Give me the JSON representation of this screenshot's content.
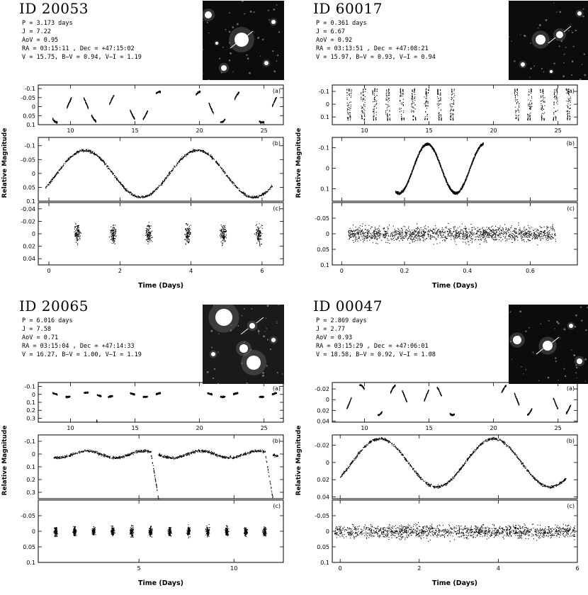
{
  "chart_data": [
    {
      "type": "scatter",
      "id": "ID 20053",
      "info": [
        "P = 3.173 days",
        "J = 7.22",
        "AoV = 0.95",
        "RA = 03:15:11 , Dec = +47:15:02",
        "V = 15.75, B−V = 0.94, V−I = 1.19"
      ],
      "ylabel": "Relative Magnitude",
      "xlabel": "Time (Days)",
      "panels": [
        {
          "tag": "(a)",
          "xlim": [
            7.5,
            26.5
          ],
          "ylim": [
            0.1,
            -0.12
          ],
          "xticks": [
            10,
            15,
            20,
            25
          ],
          "yticks": [
            -0.1,
            -0.05,
            0,
            0.05,
            0.1
          ],
          "yticklabels": [
            "-0.1",
            "-0.05",
            "0",
            "0.05",
            "0.1"
          ]
        },
        {
          "tag": "(b)",
          "xlim": [
            -0.3,
            6.6
          ],
          "ylim": [
            0.1,
            -0.13
          ],
          "yticks": [
            -0.1,
            -0.05,
            0,
            0.05,
            0.1
          ],
          "yticklabels": [
            "-0.1",
            "-0.05",
            "0",
            "0.05",
            "0.1"
          ]
        },
        {
          "tag": "(c)",
          "xlim": [
            -0.3,
            6.6
          ],
          "ylim": [
            0.05,
            -0.05
          ],
          "xticks": [
            0,
            2,
            4,
            6
          ],
          "yticks": [
            -0.04,
            -0.02,
            0,
            0.02,
            0.04
          ],
          "yticklabels": [
            "-0.04",
            "-0.02",
            "0",
            "0.02",
            "0.04"
          ]
        }
      ],
      "period": 3.173,
      "amplitude": 0.085,
      "nights": [
        8.6,
        9.7,
        11.0,
        11.6,
        13.0,
        14.6,
        15.6,
        16.6,
        19.7,
        20.7,
        21.6,
        22.7,
        24.6,
        25.6
      ],
      "nights_c": [
        0.8,
        1.8,
        2.8,
        3.9,
        4.9,
        5.9
      ]
    },
    {
      "type": "scatter",
      "id": "ID 60017",
      "info": [
        "P = 0.361 days",
        "J = 6.67",
        "AoV = 0.92",
        "RA = 03:13:51 , Dec = +47:08:21",
        "V = 15.97, B−V = 0.93, V−I = 0.94"
      ],
      "ylabel": "Relative Magnitude",
      "xlabel": "Time (Days)",
      "panels": [
        {
          "tag": "(a)",
          "xlim": [
            7.5,
            26.5
          ],
          "ylim": [
            0.16,
            -0.15
          ],
          "xticks": [
            10,
            15,
            20,
            25
          ],
          "yticks": [
            -0.1,
            0,
            0.1
          ],
          "yticklabels": [
            "-0.1",
            "0",
            "0.1"
          ]
        },
        {
          "tag": "(b)",
          "xlim": [
            -0.03,
            0.75
          ],
          "ylim": [
            0.16,
            -0.15
          ],
          "yticks": [
            -0.1,
            0,
            0.1
          ],
          "yticklabels": [
            "-0.1",
            "0",
            "0.1"
          ]
        },
        {
          "tag": "(c)",
          "xlim": [
            -0.03,
            0.75
          ],
          "ylim": [
            0.1,
            -0.1
          ],
          "xticks": [
            0,
            0.2,
            0.4,
            0.6
          ],
          "yticks": [
            -0.05,
            0,
            0.05,
            0.1
          ],
          "yticklabels": [
            "-0.05",
            "0",
            "0.05",
            "0.1"
          ]
        }
      ],
      "period": 0.181,
      "amplitude": 0.12,
      "nights": [
        8.6,
        9.7,
        10.6,
        11.6,
        12.7,
        13.6,
        14.6,
        15.6,
        16.6,
        21.6,
        22.6,
        23.6,
        24.6,
        25.6
      ]
    },
    {
      "type": "scatter",
      "id": "ID 20065",
      "info": [
        "P = 6.016 days",
        "J = 7.58",
        "AoV = 0.71",
        "RA = 03:15:04 , Dec = +47:14:33",
        "V = 16.27, B−V = 1.00, V−I = 1.19"
      ],
      "ylabel": "Relative Magnitude",
      "xlabel": "Time (Days)",
      "panels": [
        {
          "tag": "(a)",
          "xlim": [
            7.5,
            26.5
          ],
          "ylim": [
            0.35,
            -0.15
          ],
          "xticks": [
            10,
            15,
            20,
            25
          ],
          "yticks": [
            -0.1,
            0,
            0.1,
            0.2,
            0.3
          ],
          "yticklabels": [
            "-0.1",
            "0",
            "0.1",
            "0.2",
            "0.3"
          ]
        },
        {
          "tag": "(b)",
          "xlim": [
            -0.3,
            12.6
          ],
          "ylim": [
            0.35,
            -0.15
          ],
          "yticks": [
            -0.1,
            0,
            0.1,
            0.2,
            0.3
          ],
          "yticklabels": [
            "-0.1",
            "0",
            "0.1",
            "0.2",
            "0.3"
          ]
        },
        {
          "tag": "(c)",
          "xlim": [
            -0.3,
            12.6
          ],
          "ylim": [
            0.1,
            -0.1
          ],
          "xticks": [
            5,
            10
          ],
          "yticks": [
            -0.05,
            0,
            0.05,
            0.1
          ],
          "yticklabels": [
            "-0.05",
            "0",
            "0.05",
            "0.1"
          ]
        }
      ],
      "nights": [
        8.6,
        9.6,
        11.0,
        12.0,
        12.9,
        14.6,
        15.6,
        16.6,
        20.6,
        21.6,
        22.6,
        24.6,
        25.6
      ],
      "nights_c": [
        0.6,
        1.6,
        2.6,
        3.6,
        4.6,
        5.6,
        6.6,
        7.6,
        8.6,
        9.6,
        10.6,
        11.6
      ]
    },
    {
      "type": "scatter",
      "id": "ID 00047",
      "info": [
        "P = 2.869 days",
        "J = 2.77",
        "AoV = 0.93",
        "RA = 03:15:29 , Dec = +47:06:01",
        "V = 18.58, B−V = 0.92, V−I = 1.08"
      ],
      "ylabel": "Relative Magnitude",
      "xlabel": "Time (Days)",
      "panels": [
        {
          "tag": "(a)",
          "xlim": [
            7.5,
            26.5
          ],
          "ylim": [
            0.042,
            -0.032
          ],
          "xticks": [
            10,
            15,
            20,
            25
          ],
          "yticks": [
            -0.02,
            0,
            0.02,
            0.04
          ],
          "yticklabels": [
            "-0.02",
            "0",
            "0.02",
            "0.04"
          ]
        },
        {
          "tag": "(b)",
          "xlim": [
            -0.2,
            6.0
          ],
          "ylim": [
            0.042,
            -0.032
          ],
          "yticks": [
            -0.02,
            0,
            0.02,
            0.04
          ],
          "yticklabels": [
            "-0.02",
            "0",
            "0.02",
            "0.04"
          ]
        },
        {
          "tag": "(c)",
          "xlim": [
            -0.2,
            6.0
          ],
          "ylim": [
            0.1,
            -0.1
          ],
          "xticks": [
            0,
            2,
            4,
            6
          ],
          "yticks": [
            -0.05,
            0,
            0.05,
            0.1
          ],
          "yticklabels": [
            "-0.05",
            "0",
            "0.05",
            "0.1"
          ]
        }
      ],
      "period": 2.869,
      "amplitude": 0.028,
      "nights": [
        8.6,
        9.6,
        11.0,
        12.0,
        12.9,
        14.6,
        15.6,
        16.6,
        20.6,
        21.6,
        22.6,
        24.6,
        25.6
      ]
    }
  ]
}
